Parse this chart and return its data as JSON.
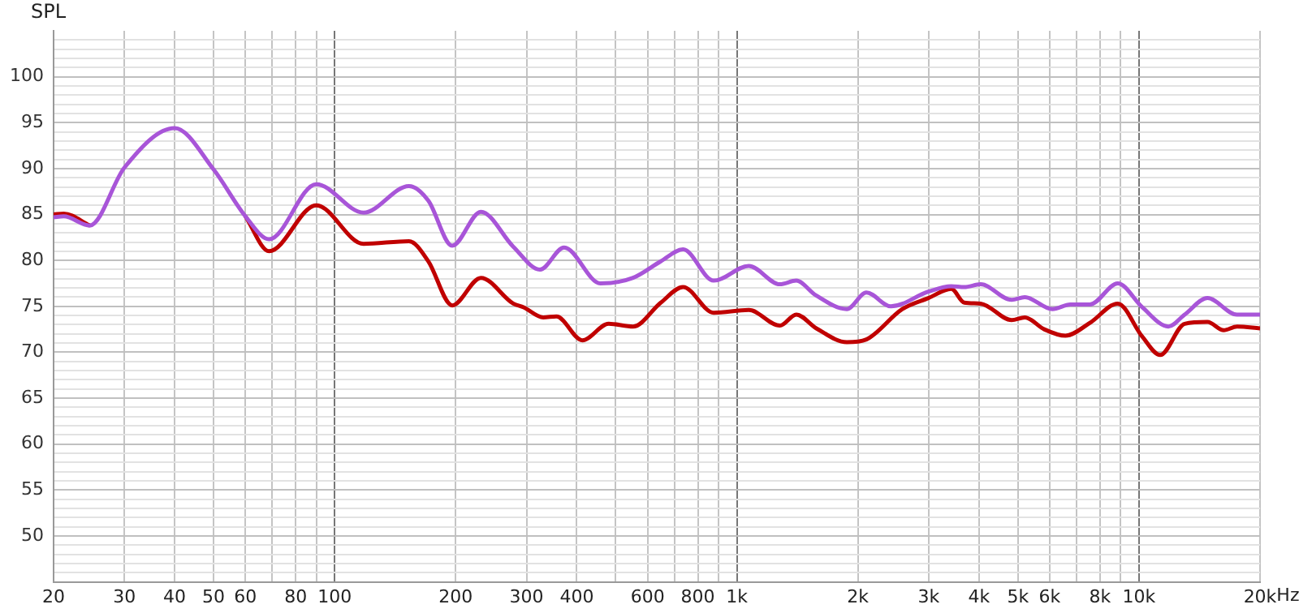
{
  "chart_data": {
    "type": "line",
    "ylabel": "SPL",
    "log": "x",
    "grid": true,
    "marker": "none",
    "line_style": "solid",
    "xlim": [
      20,
      20000
    ],
    "ylim": [
      45,
      105
    ],
    "xticks": [
      20,
      30,
      40,
      50,
      60,
      {
        "value": 70,
        "label": null
      },
      80,
      {
        "value": 90,
        "label": null
      },
      100,
      200,
      300,
      400,
      {
        "value": 500,
        "label": null
      },
      600,
      {
        "value": 700,
        "label": null
      },
      800,
      {
        "value": 900,
        "label": null
      },
      {
        "value": 1000,
        "label": "1k"
      },
      {
        "value": 2000,
        "label": "2k"
      },
      {
        "value": 3000,
        "label": "3k"
      },
      {
        "value": 4000,
        "label": "4k"
      },
      {
        "value": 5000,
        "label": "5k"
      },
      {
        "value": 6000,
        "label": "6k"
      },
      {
        "value": 7000,
        "label": null
      },
      {
        "value": 8000,
        "label": "8k"
      },
      {
        "value": 9000,
        "label": null
      },
      {
        "value": 10000,
        "label": "10k"
      },
      {
        "value": 20000,
        "label": "20k"
      }
    ],
    "xlabel": "Hz",
    "yticks": [
      {
        "value": 46,
        "label": null
      },
      {
        "value": 47,
        "label": null
      },
      {
        "value": 48,
        "label": null
      },
      {
        "value": 49,
        "label": null
      },
      50,
      {
        "value": 51,
        "label": null
      },
      {
        "value": 52,
        "label": null
      },
      {
        "value": 53,
        "label": null
      },
      {
        "value": 54,
        "label": null
      },
      55,
      {
        "value": 56,
        "label": null
      },
      {
        "value": 57,
        "label": null
      },
      {
        "value": 58,
        "label": null
      },
      {
        "value": 59,
        "label": null
      },
      60,
      {
        "value": 61,
        "label": null
      },
      {
        "value": 62,
        "label": null
      },
      {
        "value": 63,
        "label": null
      },
      {
        "value": 64,
        "label": null
      },
      65,
      {
        "value": 66,
        "label": null
      },
      {
        "value": 67,
        "label": null
      },
      {
        "value": 68,
        "label": null
      },
      {
        "value": 69,
        "label": null
      },
      70,
      {
        "value": 71,
        "label": null
      },
      {
        "value": 72,
        "label": null
      },
      {
        "value": 73,
        "label": null
      },
      {
        "value": 74,
        "label": null
      },
      75,
      {
        "value": 76,
        "label": null
      },
      {
        "value": 77,
        "label": null
      },
      {
        "value": 78,
        "label": null
      },
      {
        "value": 79,
        "label": null
      },
      80,
      {
        "value": 81,
        "label": null
      },
      {
        "value": 82,
        "label": null
      },
      {
        "value": 83,
        "label": null
      },
      {
        "value": 84,
        "label": null
      },
      85,
      {
        "value": 86,
        "label": null
      },
      {
        "value": 87,
        "label": null
      },
      {
        "value": 88,
        "label": null
      },
      {
        "value": 89,
        "label": null
      },
      90,
      {
        "value": 91,
        "label": null
      },
      {
        "value": 92,
        "label": null
      },
      {
        "value": 93,
        "label": null
      },
      {
        "value": 94,
        "label": null
      },
      95,
      {
        "value": 96,
        "label": null
      },
      {
        "value": 97,
        "label": null
      },
      {
        "value": 98,
        "label": null
      },
      {
        "value": 99,
        "label": null
      },
      100,
      {
        "value": 101,
        "label": null
      },
      {
        "value": 102,
        "label": null
      },
      {
        "value": 103,
        "label": null
      },
      {
        "value": 104,
        "label": null
      }
    ],
    "series": [
      {
        "color": "#a855d8",
        "x": [
          20,
          21.2,
          24.6,
          30,
          40,
          50,
          60,
          68.7,
          90,
          118,
          153,
          171,
          196,
          231,
          278,
          324,
          372,
          458,
          552,
          647,
          735,
          876,
          1071,
          1280,
          1405,
          1572,
          1877,
          2100,
          2416,
          2994,
          3414,
          3679,
          4039,
          4824,
          5199,
          6091,
          6752,
          7553,
          8855,
          10190,
          11830,
          12990,
          14800,
          17520,
          20000
        ],
        "values": [
          84.7,
          84.8,
          83.8,
          90.1,
          94.4,
          89.9,
          84.8,
          82.3,
          88.3,
          85.2,
          88.1,
          86.5,
          81.6,
          85.3,
          81.5,
          79.0,
          81.4,
          77.5,
          78.1,
          79.9,
          81.2,
          77.8,
          79.4,
          77.4,
          77.8,
          76.2,
          74.7,
          76.5,
          75.0,
          76.6,
          77.2,
          77.1,
          77.4,
          75.7,
          76.0,
          74.7,
          75.2,
          75.2,
          77.5,
          74.9,
          72.8,
          74.1,
          75.9,
          74.1,
          74.1
        ]
      },
      {
        "color": "#c00000",
        "x": [
          20,
          21.2,
          24.6,
          30,
          40,
          50,
          60,
          68.7,
          90,
          118,
          153,
          171,
          196,
          231,
          278,
          295,
          330,
          356,
          413,
          480,
          552,
          647,
          735,
          876,
          1071,
          1280,
          1405,
          1577,
          1877,
          2100,
          2580,
          2994,
          3414,
          3679,
          4039,
          4824,
          5199,
          5814,
          6564,
          7553,
          8855,
          10190,
          11290,
          12990,
          14800,
          16250,
          17520,
          20000
        ],
        "values": [
          85.0,
          85.1,
          83.8,
          null,
          null,
          null,
          84.8,
          81.0,
          86.0,
          81.8,
          82.1,
          79.9,
          75.1,
          78.1,
          75.3,
          74.9,
          73.8,
          73.9,
          71.3,
          73.1,
          72.8,
          75.4,
          77.1,
          74.3,
          74.6,
          72.9,
          74.1,
          72.6,
          71.1,
          71.4,
          74.7,
          75.9,
          76.9,
          75.4,
          75.3,
          73.5,
          73.8,
          72.5,
          71.8,
          73.2,
          75.3,
          71.7,
          69.7,
          73.1,
          73.3,
          72.4,
          72.8,
          72.6
        ]
      }
    ]
  }
}
